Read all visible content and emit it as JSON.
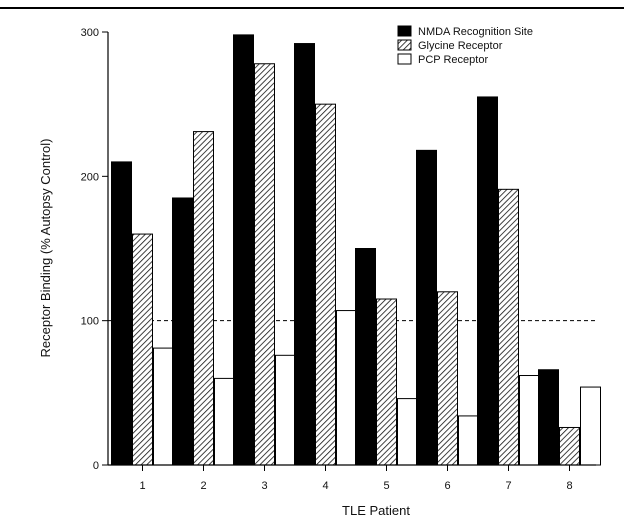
{
  "chart_data": {
    "type": "bar",
    "title": "",
    "xlabel": "TLE Patient",
    "ylabel": "Receptor Binding (% Autopsy Control)",
    "categories": [
      "1",
      "2",
      "3",
      "4",
      "5",
      "6",
      "7",
      "8"
    ],
    "ylim": [
      0,
      300
    ],
    "yticks": [
      "0",
      "100",
      "200",
      "300"
    ],
    "reference_line": {
      "value": 100,
      "style": "dashed"
    },
    "grid": false,
    "legend_position": "top-right",
    "series": [
      {
        "name": "NMDA Recognition Site",
        "fill": "solid-black",
        "values": [
          210,
          185,
          298,
          292,
          150,
          218,
          255,
          66
        ]
      },
      {
        "name": "Glycine Receptor",
        "fill": "hatched",
        "values": [
          160,
          231,
          278,
          250,
          115,
          120,
          191,
          26
        ]
      },
      {
        "name": "PCP Receptor",
        "fill": "white",
        "values": [
          81,
          60,
          76,
          107,
          46,
          34,
          62,
          54
        ]
      }
    ]
  }
}
